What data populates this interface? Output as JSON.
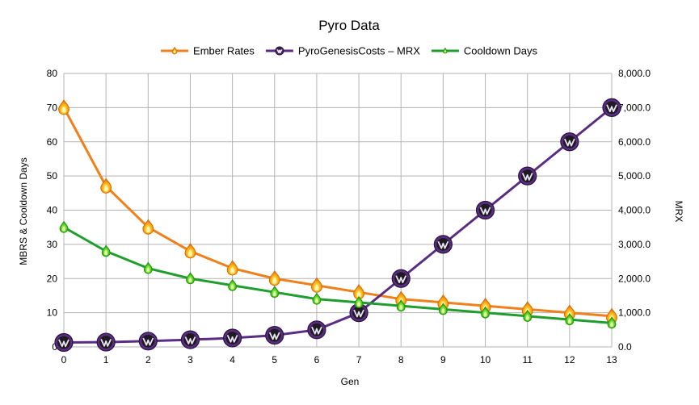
{
  "chart_data": {
    "type": "line",
    "title": "Pyro Data",
    "xlabel": "Gen",
    "ylabel": "MBRS & Cooldown Days",
    "y2label": "MRX",
    "x": [
      0,
      1,
      2,
      3,
      4,
      5,
      6,
      7,
      8,
      9,
      10,
      11,
      12,
      13
    ],
    "ylim": [
      0,
      80
    ],
    "y2lim": [
      0,
      8000
    ],
    "yticks": [
      "0",
      "10",
      "20",
      "30",
      "40",
      "50",
      "60",
      "70",
      "80"
    ],
    "y2ticks": [
      "0.0",
      "1,000.0",
      "2,000.0",
      "3,000.0",
      "4,000.0",
      "5,000.0",
      "6,000.0",
      "7,000.0",
      "8,000.0"
    ],
    "grid": true,
    "legend_position": "top",
    "series": [
      {
        "name": "Ember Rates",
        "axis": "left",
        "color": "#f07f1c",
        "marker": "flame-icon",
        "values": [
          70,
          47,
          35,
          28,
          23,
          20,
          18,
          16,
          14,
          13,
          12,
          11,
          10,
          9
        ]
      },
      {
        "name": "PyroGenesisCosts – MRX",
        "axis": "right",
        "color": "#5a2d82",
        "marker": "emblem-icon",
        "values": [
          130,
          140,
          170,
          210,
          260,
          340,
          500,
          1000,
          2000,
          3000,
          4000,
          5000,
          6000,
          7000
        ]
      },
      {
        "name": "Cooldown Days",
        "axis": "left",
        "color": "#1f9e2e",
        "marker": "green-flame-icon",
        "values": [
          35,
          28,
          23,
          20,
          18,
          16,
          14,
          13,
          12,
          11,
          10,
          9,
          8,
          7
        ]
      }
    ]
  }
}
